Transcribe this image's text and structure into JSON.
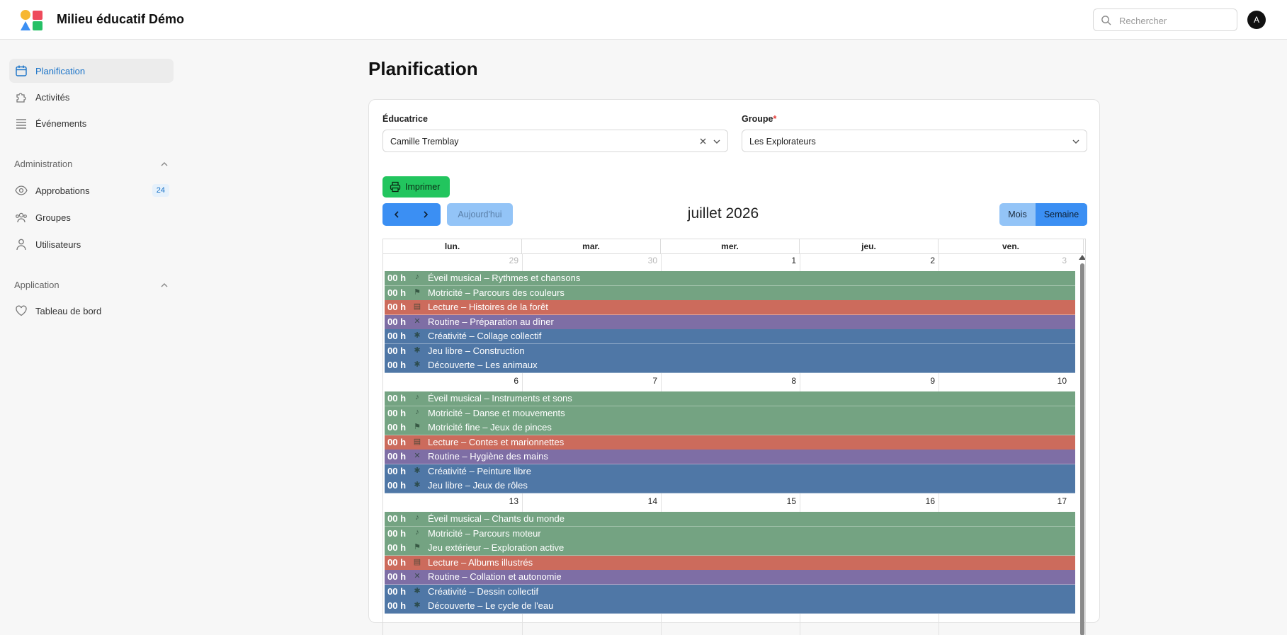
{
  "app": {
    "title": "Milieu éducatif Démo",
    "avatar_initial": "A"
  },
  "search": {
    "placeholder": "Rechercher"
  },
  "sidebar": {
    "items": [
      {
        "label": "Planification",
        "icon": "calendar-icon",
        "active": true
      },
      {
        "label": "Activités",
        "icon": "puzzle-icon"
      },
      {
        "label": "Événements",
        "icon": "list-icon"
      }
    ],
    "admin_section": {
      "title": "Administration",
      "items": [
        {
          "label": "Approbations",
          "icon": "eye-icon",
          "badge": "24"
        },
        {
          "label": "Groupes",
          "icon": "users-icon"
        },
        {
          "label": "Utilisateurs",
          "icon": "user-icon"
        }
      ]
    },
    "app_section": {
      "title": "Application",
      "items": [
        {
          "label": "Tableau de bord",
          "icon": "heart-icon"
        }
      ]
    }
  },
  "main": {
    "title": "Planification",
    "educatrice": {
      "label": "Éducatrice",
      "value": "Camille Tremblay"
    },
    "groupe": {
      "label": "Groupe",
      "required_mark": "*",
      "value": "Les Explorateurs"
    },
    "print_label": "Imprimer",
    "today_label": "Aujourd'hui",
    "calendar_title": "juillet 2026",
    "views": {
      "month": "Mois",
      "week": "Semaine",
      "active": "week"
    }
  },
  "calendar": {
    "weekdays": [
      "lun.",
      "mar.",
      "mer.",
      "jeu.",
      "ven."
    ],
    "colors": {
      "green": "#74a382",
      "red": "#cc6b5c",
      "purple": "#7e6ea5",
      "blue": "#4f77a6"
    },
    "weeks": [
      {
        "days": [
          {
            "num": "29",
            "muted": true
          },
          {
            "num": "30",
            "muted": true
          },
          {
            "num": "1"
          },
          {
            "num": "2"
          },
          {
            "num": "3",
            "muted": true
          }
        ],
        "events": [
          {
            "time": "00 h",
            "icon": "music-note-icon",
            "title": "Éveil musical – Rythmes et chansons",
            "color": "green"
          },
          {
            "time": "00 h",
            "icon": "running-icon",
            "title": "Motricité – Parcours des couleurs",
            "color": "green"
          },
          {
            "time": "00 h",
            "icon": "book-icon",
            "title": "Lecture – Histoires de la forêt",
            "color": "red"
          },
          {
            "time": "00 h",
            "icon": "routine-icon",
            "title": "Routine – Préparation au dîner",
            "color": "purple"
          },
          {
            "time": "00 h",
            "icon": "sparkle-icon",
            "title": "Créativité – Collage collectif",
            "color": "blue"
          },
          {
            "time": "00 h",
            "icon": "sparkle-icon",
            "title": "Jeu libre – Construction",
            "color": "blue"
          },
          {
            "time": "00 h",
            "icon": "sparkle-icon",
            "title": "Découverte – Les animaux",
            "color": "blue"
          }
        ]
      },
      {
        "days": [
          {
            "num": "6"
          },
          {
            "num": "7"
          },
          {
            "num": "8"
          },
          {
            "num": "9"
          },
          {
            "num": "10"
          }
        ],
        "events": [
          {
            "time": "00 h",
            "icon": "music-note-icon",
            "title": "Éveil musical – Instruments et sons",
            "color": "green"
          },
          {
            "time": "00 h",
            "icon": "music-note-icon",
            "title": "Motricité – Danse et mouvements",
            "color": "green"
          },
          {
            "time": "00 h",
            "icon": "running-icon",
            "title": "Motricité fine – Jeux de pinces",
            "color": "green"
          },
          {
            "time": "00 h",
            "icon": "book-icon",
            "title": "Lecture – Contes et marionnettes",
            "color": "red"
          },
          {
            "time": "00 h",
            "icon": "routine-icon",
            "title": "Routine – Hygiène des mains",
            "color": "purple"
          },
          {
            "time": "00 h",
            "icon": "sparkle-icon",
            "title": "Créativité – Peinture libre",
            "color": "blue"
          },
          {
            "time": "00 h",
            "icon": "sparkle-icon",
            "title": "Jeu libre – Jeux de rôles",
            "color": "blue"
          }
        ]
      },
      {
        "days": [
          {
            "num": "13"
          },
          {
            "num": "14"
          },
          {
            "num": "15"
          },
          {
            "num": "16"
          },
          {
            "num": "17"
          }
        ],
        "events": [
          {
            "time": "00 h",
            "icon": "music-note-icon",
            "title": "Éveil musical – Chants du monde",
            "color": "green"
          },
          {
            "time": "00 h",
            "icon": "music-note-icon",
            "title": "Motricité – Parcours moteur",
            "color": "green"
          },
          {
            "time": "00 h",
            "icon": "running-icon",
            "title": "Jeu extérieur – Exploration active",
            "color": "green"
          },
          {
            "time": "00 h",
            "icon": "book-icon",
            "title": "Lecture – Albums illustrés",
            "color": "red"
          },
          {
            "time": "00 h",
            "icon": "routine-icon",
            "title": "Routine – Collation et autonomie",
            "color": "purple"
          },
          {
            "time": "00 h",
            "icon": "sparkle-icon",
            "title": "Créativité – Dessin collectif",
            "color": "blue"
          },
          {
            "time": "00 h",
            "icon": "sparkle-icon",
            "title": "Découverte – Le cycle de l'eau",
            "color": "blue"
          }
        ]
      }
    ]
  }
}
